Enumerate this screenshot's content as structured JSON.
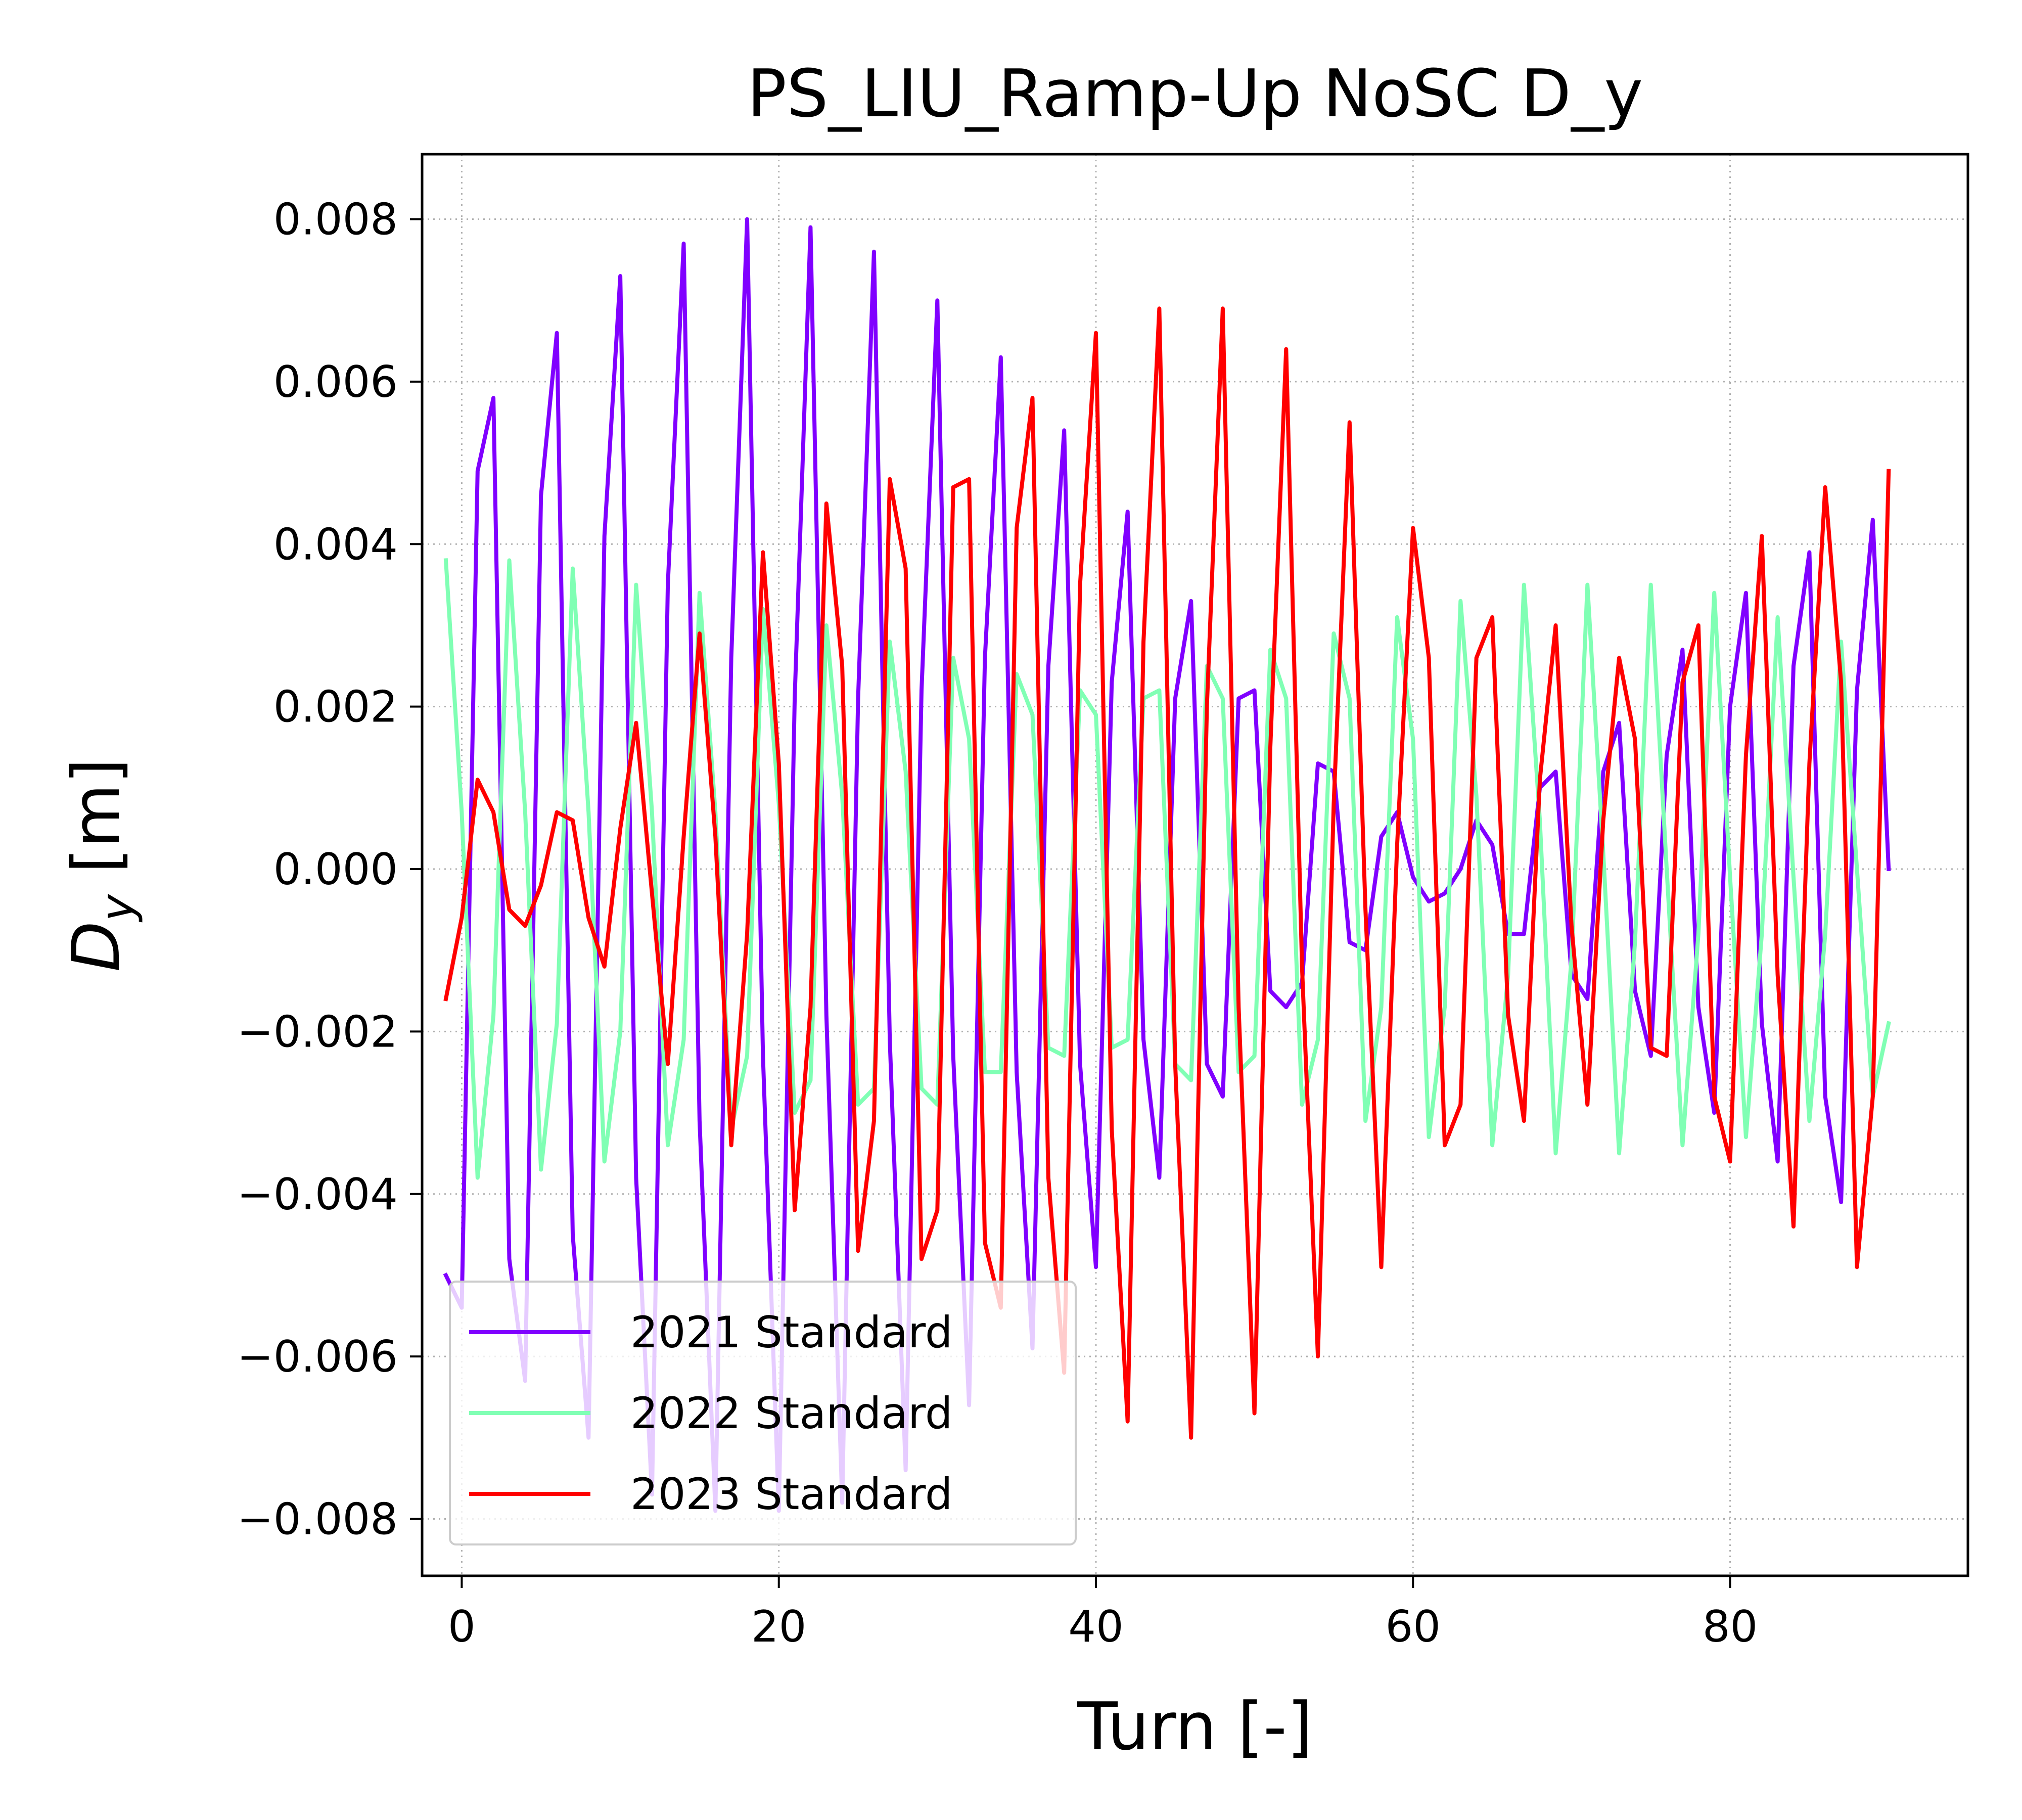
{
  "chart_data": {
    "type": "line",
    "title": "PS_LIU_Ramp-Up NoSC D_y",
    "xlabel": "Turn [-]",
    "ylabel_main": "D",
    "ylabel_sub": "y",
    "ylabel_unit": " [m]",
    "xlim": [
      -2.5,
      95
    ],
    "ylim": [
      -0.0087,
      0.0088
    ],
    "xticks": [
      0,
      20,
      40,
      60,
      80
    ],
    "xtick_labels": [
      "0",
      "20",
      "40",
      "60",
      "80"
    ],
    "yticks": [
      0.008,
      0.006,
      0.004,
      0.002,
      0.0,
      -0.002,
      -0.004,
      -0.006,
      -0.008
    ],
    "ytick_labels": [
      "0.008",
      "0.006",
      "0.004",
      "0.002",
      "0.000",
      "−0.002",
      "−0.004",
      "−0.006",
      "−0.008"
    ],
    "grid": true,
    "legend_position": "lower-left",
    "x": [
      -1,
      0,
      1,
      2,
      3,
      4,
      5,
      6,
      7,
      8,
      9,
      10,
      11,
      12,
      13,
      14,
      15,
      16,
      17,
      18,
      19,
      20,
      21,
      22,
      23,
      24,
      25,
      26,
      27,
      28,
      29,
      30,
      31,
      32,
      33,
      34,
      35,
      36,
      37,
      38,
      39,
      40,
      41,
      42,
      43,
      44,
      45,
      46,
      47,
      48,
      49,
      50,
      51,
      52,
      53,
      54,
      55,
      56,
      57,
      58,
      59,
      60,
      61,
      62,
      63,
      64,
      65,
      66,
      67,
      68,
      69,
      70,
      71,
      72,
      73,
      74,
      75,
      76,
      77,
      78,
      79,
      80,
      81,
      82,
      83,
      84,
      85,
      86,
      87,
      88,
      89,
      90
    ],
    "series": [
      {
        "name": "2021 Standard",
        "color": "#8000ff",
        "values": [
          -0.005,
          -0.0054,
          0.0049,
          0.0058,
          -0.0048,
          -0.0063,
          0.0046,
          0.0066,
          -0.0045,
          -0.007,
          0.0041,
          0.0073,
          -0.0038,
          -0.0077,
          0.0035,
          0.0077,
          -0.0031,
          -0.0079,
          0.0026,
          0.008,
          -0.0023,
          -0.0079,
          0.0021,
          0.0079,
          -0.0018,
          -0.0078,
          0.0021,
          0.0076,
          -0.0021,
          -0.0074,
          0.0022,
          0.007,
          -0.0023,
          -0.0066,
          0.0026,
          0.0063,
          -0.0025,
          -0.0059,
          0.0025,
          0.0054,
          -0.0024,
          -0.0049,
          0.0023,
          0.0044,
          -0.0021,
          -0.0038,
          0.0021,
          0.0033,
          -0.0024,
          -0.0028,
          0.0021,
          0.0022,
          -0.0015,
          -0.0017,
          -0.0014,
          0.0013,
          0.0012,
          -0.0009,
          -0.001,
          0.0004,
          0.0007,
          -0.0001,
          -0.0004,
          -0.0003,
          0.0,
          0.0006,
          0.0003,
          -0.0008,
          -0.0008,
          0.001,
          0.0012,
          -0.0013,
          -0.0016,
          0.0012,
          0.0018,
          -0.0015,
          -0.0023,
          0.0014,
          0.0027,
          -0.0017,
          -0.003,
          0.002,
          0.0034,
          -0.0019,
          -0.0036,
          0.0025,
          0.0039,
          -0.0028,
          -0.0041,
          0.0022,
          0.0043,
          0.0
        ]
      },
      {
        "name": "2022 Standard",
        "color": "#80ffb4",
        "values": [
          0.0038,
          0.0007,
          -0.0038,
          -0.0018,
          0.0038,
          0.0007,
          -0.0037,
          -0.0019,
          0.0037,
          0.0007,
          -0.0036,
          -0.002,
          0.0035,
          0.0007,
          -0.0034,
          -0.0021,
          0.0034,
          0.0007,
          -0.0032,
          -0.0023,
          0.0032,
          0.0008,
          -0.003,
          -0.0026,
          0.003,
          0.0009,
          -0.0029,
          -0.0027,
          0.0028,
          0.0012,
          -0.0027,
          -0.0029,
          0.0026,
          0.0016,
          -0.0025,
          -0.0025,
          0.0024,
          0.0019,
          -0.0022,
          -0.0023,
          0.0022,
          0.0019,
          -0.0022,
          -0.0021,
          0.0021,
          0.0022,
          -0.0024,
          -0.0026,
          0.0025,
          0.0021,
          -0.0025,
          -0.0023,
          0.0027,
          0.0021,
          -0.0029,
          -0.0021,
          0.0029,
          0.0021,
          -0.0031,
          -0.0017,
          0.0031,
          0.0016,
          -0.0033,
          -0.0017,
          0.0033,
          0.0009,
          -0.0034,
          -0.0013,
          0.0035,
          0.0006,
          -0.0035,
          -0.0011,
          0.0035,
          0.0002,
          -0.0035,
          -0.0009,
          0.0035,
          0.0,
          -0.0034,
          -0.0008,
          0.0034,
          -0.0001,
          -0.0033,
          -0.0008,
          0.0031,
          -0.0001,
          -0.0031,
          -0.0008,
          0.0028,
          0.0,
          -0.0028,
          -0.0019
        ]
      },
      {
        "name": "2023 Standard",
        "color": "#ff0000",
        "values": [
          -0.0016,
          -0.0006,
          0.0011,
          0.0007,
          -0.0005,
          -0.0007,
          -0.0002,
          0.0007,
          0.0006,
          -0.0006,
          -0.0012,
          0.0005,
          0.0018,
          -0.0003,
          -0.0024,
          0.0004,
          0.0029,
          0.0004,
          -0.0034,
          -0.0008,
          0.0039,
          0.0013,
          -0.0042,
          -0.0017,
          0.0045,
          0.0025,
          -0.0047,
          -0.0031,
          0.0048,
          0.0037,
          -0.0048,
          -0.0042,
          0.0047,
          0.0048,
          -0.0046,
          -0.0054,
          0.0042,
          0.0058,
          -0.0038,
          -0.0062,
          0.0035,
          0.0066,
          -0.0032,
          -0.0068,
          0.0028,
          0.0069,
          -0.0024,
          -0.007,
          0.002,
          0.0069,
          -0.0017,
          -0.0067,
          0.0015,
          0.0064,
          -0.0012,
          -0.006,
          0.0008,
          0.0055,
          -0.0005,
          -0.0049,
          0.0003,
          0.0042,
          0.0026,
          -0.0034,
          -0.0029,
          0.0026,
          0.0031,
          -0.0018,
          -0.0031,
          0.0011,
          0.003,
          -0.0007,
          -0.0029,
          0.0006,
          0.0026,
          0.0016,
          -0.0022,
          -0.0023,
          0.0023,
          0.003,
          -0.0028,
          -0.0036,
          0.0014,
          0.0041,
          -0.0013,
          -0.0044,
          0.0013,
          0.0047,
          0.0023,
          -0.0049,
          -0.0028,
          0.0049
        ]
      }
    ]
  }
}
